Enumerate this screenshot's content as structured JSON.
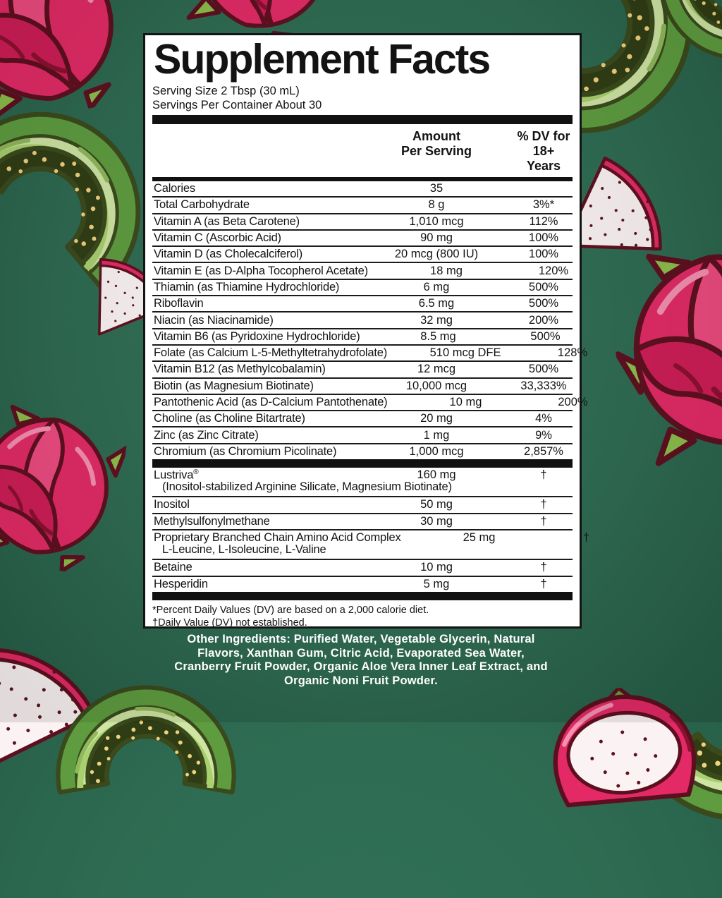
{
  "supplement_facts": {
    "title": "Supplement Facts",
    "serving_size": "Serving Size 2 Tbsp (30 mL)",
    "servings_per_container": "Servings Per Container About 30",
    "header": {
      "amount_line1": "Amount",
      "amount_line2": "Per Serving",
      "dv_line1": "% DV for",
      "dv_line2": "18+ Years"
    },
    "main_rows": [
      {
        "name": "Calories",
        "amount": "35",
        "dv": ""
      },
      {
        "name": "Total Carbohydrate",
        "amount": "8 g",
        "dv": "3%*"
      },
      {
        "name": "Vitamin A (as Beta Carotene)",
        "amount": "1,010 mcg",
        "dv": "112%"
      },
      {
        "name": "Vitamin C (Ascorbic Acid)",
        "amount": "90 mg",
        "dv": "100%"
      },
      {
        "name": "Vitamin D (as Cholecalciferol)",
        "amount": "20 mcg (800 IU)",
        "dv": "100%"
      },
      {
        "name": "Vitamin E (as D-Alpha Tocopherol Acetate)",
        "amount": "18 mg",
        "dv": "120%"
      },
      {
        "name": "Thiamin (as Thiamine Hydrochloride)",
        "amount": "6 mg",
        "dv": "500%"
      },
      {
        "name": "Riboflavin",
        "amount": "6.5 mg",
        "dv": "500%"
      },
      {
        "name": "Niacin (as Niacinamide)",
        "amount": "32 mg",
        "dv": "200%"
      },
      {
        "name": "Vitamin B6 (as Pyridoxine Hydrochloride)",
        "amount": "8.5 mg",
        "dv": "500%"
      },
      {
        "name": "Folate (as Calcium L-5-Methyltetrahydrofolate)",
        "amount": "510 mcg DFE",
        "dv": "128%"
      },
      {
        "name": "Vitamin B12 (as Methylcobalamin)",
        "amount": "12 mcg",
        "dv": "500%"
      },
      {
        "name": "Biotin (as Magnesium Biotinate)",
        "amount": "10,000 mcg",
        "dv": "33,333%"
      },
      {
        "name": "Pantothenic Acid (as D-Calcium Pantothenate)",
        "amount": "10 mg",
        "dv": "200%"
      },
      {
        "name": "Choline (as Choline Bitartrate)",
        "amount": "20 mg",
        "dv": "4%"
      },
      {
        "name": "Zinc (as Zinc Citrate)",
        "amount": "1 mg",
        "dv": "9%"
      },
      {
        "name": "Chromium (as Chromium Picolinate)",
        "amount": "1,000 mcg",
        "dv": "2,857%"
      }
    ],
    "secondary_rows": [
      {
        "name": "Lustriva",
        "sup": "®",
        "sub": "(Inositol-stabilized Arginine Silicate, Magnesium Biotinate)",
        "amount": "160 mg",
        "dv": "†"
      },
      {
        "name": "Inositol",
        "amount": "50 mg",
        "dv": "†"
      },
      {
        "name": "Methylsulfonylmethane",
        "amount": "30 mg",
        "dv": "†"
      },
      {
        "name": "Proprietary Branched Chain Amino Acid Complex",
        "sub": "L-Leucine, L-Isoleucine, L-Valine",
        "amount": "25 mg",
        "dv": "†"
      },
      {
        "name": "Betaine",
        "amount": "10 mg",
        "dv": "†"
      },
      {
        "name": "Hesperidin",
        "amount": "5 mg",
        "dv": "†"
      }
    ],
    "footnotes": [
      "*Percent Daily Values (DV) are based on a 2,000 calorie diet.",
      "†Daily Value (DV) not established."
    ]
  },
  "other_ingredients": {
    "lines": [
      "Other Ingredients: Purified Water, Vegetable Glycerin, Natural",
      "Flavors, Xanthan Gum, Citric Acid, Evaporated Sea Water,",
      "Cranberry Fruit Powder, Organic Aloe Vera Inner Leaf Extract, and",
      "Organic Noni Fruit Powder."
    ]
  },
  "decorations": {
    "fruit_illustrations": [
      "dragon-fruit",
      "melon-slice",
      "dragon-fruit-slice",
      "dragon-fruit-half"
    ]
  },
  "colors": {
    "background_green": "#2e6b52",
    "panel_background": "#ffffff",
    "panel_border": "#141414",
    "text": "#131313",
    "dragon_fruit_pink": "#e32a66",
    "dragon_fruit_outline": "#5e0f1f",
    "melon_flesh": "#cfe5a4",
    "melon_rind": "#5e9c3f",
    "melon_seeds": "#f1d17e",
    "other_ingredients_text": "#ffffff"
  }
}
